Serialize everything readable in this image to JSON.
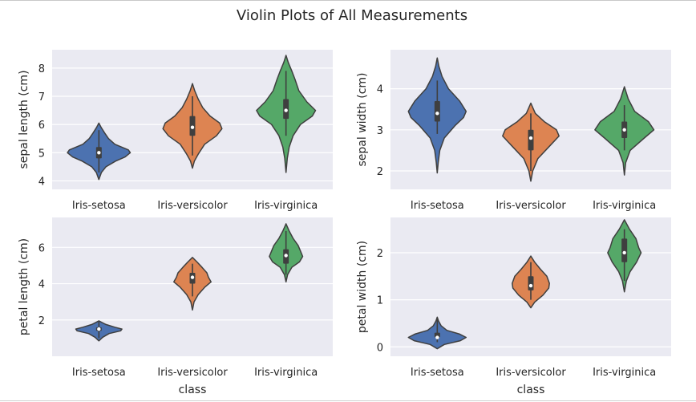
{
  "figure": {
    "title": "Violin Plots of All Measurements"
  },
  "chart_data": [
    {
      "type": "violin",
      "ylabel": "sepal length (cm)",
      "xlabel": "",
      "categories": [
        "Iris-setosa",
        "Iris-versicolor",
        "Iris-virginica"
      ],
      "yticks": [
        4,
        5,
        6,
        7,
        8
      ],
      "ylim": [
        3.7,
        8.65
      ],
      "grid": true,
      "series": [
        {
          "category": "Iris-setosa",
          "color": "#4c72b0",
          "profile": [
            [
              4.05,
              0
            ],
            [
              4.3,
              0.08
            ],
            [
              4.5,
              0.22
            ],
            [
              4.7,
              0.52
            ],
            [
              4.85,
              0.82
            ],
            [
              5.0,
              0.98
            ],
            [
              5.1,
              0.92
            ],
            [
              5.3,
              0.5
            ],
            [
              5.5,
              0.3
            ],
            [
              5.7,
              0.18
            ],
            [
              5.9,
              0.07
            ],
            [
              6.05,
              0
            ]
          ],
          "min": 4.3,
          "q1": 4.8,
          "median": 5.0,
          "q3": 5.2,
          "max": 5.8
        },
        {
          "category": "Iris-versicolor",
          "color": "#dd8452",
          "profile": [
            [
              4.45,
              0
            ],
            [
              4.7,
              0.06
            ],
            [
              4.95,
              0.18
            ],
            [
              5.3,
              0.38
            ],
            [
              5.6,
              0.75
            ],
            [
              5.85,
              0.92
            ],
            [
              6.05,
              0.85
            ],
            [
              6.3,
              0.55
            ],
            [
              6.6,
              0.32
            ],
            [
              6.9,
              0.18
            ],
            [
              7.2,
              0.07
            ],
            [
              7.45,
              0
            ]
          ],
          "min": 4.9,
          "q1": 5.6,
          "median": 5.9,
          "q3": 6.3,
          "max": 7.0
        },
        {
          "category": "Iris-virginica",
          "color": "#55a868",
          "profile": [
            [
              4.3,
              0
            ],
            [
              4.8,
              0.04
            ],
            [
              5.2,
              0.1
            ],
            [
              5.6,
              0.22
            ],
            [
              6.0,
              0.45
            ],
            [
              6.3,
              0.82
            ],
            [
              6.5,
              0.92
            ],
            [
              6.8,
              0.65
            ],
            [
              7.2,
              0.4
            ],
            [
              7.6,
              0.28
            ],
            [
              7.9,
              0.18
            ],
            [
              8.2,
              0.07
            ],
            [
              8.45,
              0
            ]
          ],
          "min": 5.6,
          "q1": 6.2,
          "median": 6.5,
          "q3": 6.9,
          "max": 7.9
        }
      ]
    },
    {
      "type": "violin",
      "ylabel": "sepal width (cm)",
      "xlabel": "",
      "categories": [
        "Iris-setosa",
        "Iris-versicolor",
        "Iris-virginica"
      ],
      "yticks": [
        2,
        3,
        4
      ],
      "ylim": [
        1.55,
        4.95
      ],
      "grid": true,
      "series": [
        {
          "category": "Iris-setosa",
          "color": "#4c72b0",
          "profile": [
            [
              1.95,
              0
            ],
            [
              2.2,
              0.03
            ],
            [
              2.5,
              0.08
            ],
            [
              2.8,
              0.22
            ],
            [
              3.1,
              0.55
            ],
            [
              3.3,
              0.82
            ],
            [
              3.45,
              0.9
            ],
            [
              3.7,
              0.7
            ],
            [
              4.0,
              0.35
            ],
            [
              4.3,
              0.15
            ],
            [
              4.55,
              0.05
            ],
            [
              4.75,
              0
            ]
          ],
          "min": 2.9,
          "q1": 3.2,
          "median": 3.4,
          "q3": 3.7,
          "max": 4.2
        },
        {
          "category": "Iris-versicolor",
          "color": "#dd8452",
          "profile": [
            [
              1.75,
              0
            ],
            [
              2.0,
              0.06
            ],
            [
              2.3,
              0.22
            ],
            [
              2.6,
              0.58
            ],
            [
              2.85,
              0.88
            ],
            [
              3.0,
              0.8
            ],
            [
              3.2,
              0.42
            ],
            [
              3.4,
              0.14
            ],
            [
              3.65,
              0
            ]
          ],
          "min": 2.0,
          "q1": 2.5,
          "median": 2.8,
          "q3": 3.0,
          "max": 3.4
        },
        {
          "category": "Iris-virginica",
          "color": "#55a868",
          "profile": [
            [
              1.9,
              0
            ],
            [
              2.2,
              0.04
            ],
            [
              2.5,
              0.18
            ],
            [
              2.8,
              0.62
            ],
            [
              3.0,
              0.92
            ],
            [
              3.2,
              0.75
            ],
            [
              3.45,
              0.32
            ],
            [
              3.75,
              0.12
            ],
            [
              4.05,
              0
            ]
          ],
          "min": 2.5,
          "q1": 2.8,
          "median": 3.0,
          "q3": 3.2,
          "max": 3.6
        }
      ]
    },
    {
      "type": "violin",
      "ylabel": "petal length (cm)",
      "xlabel": "class",
      "categories": [
        "Iris-setosa",
        "Iris-versicolor",
        "Iris-virginica"
      ],
      "yticks": [
        2,
        4,
        6
      ],
      "ylim": [
        0.0,
        7.65
      ],
      "grid": true,
      "series": [
        {
          "category": "Iris-setosa",
          "color": "#4c72b0",
          "profile": [
            [
              0.85,
              0
            ],
            [
              1.05,
              0.12
            ],
            [
              1.25,
              0.32
            ],
            [
              1.4,
              0.68
            ],
            [
              1.5,
              0.72
            ],
            [
              1.6,
              0.5
            ],
            [
              1.75,
              0.22
            ],
            [
              1.95,
              0
            ]
          ],
          "min": 1.0,
          "q1": 1.4,
          "median": 1.5,
          "q3": 1.6,
          "max": 1.9
        },
        {
          "category": "Iris-versicolor",
          "color": "#dd8452",
          "profile": [
            [
              2.55,
              0
            ],
            [
              3.0,
              0.05
            ],
            [
              3.4,
              0.18
            ],
            [
              3.8,
              0.38
            ],
            [
              4.1,
              0.58
            ],
            [
              4.35,
              0.5
            ],
            [
              4.6,
              0.45
            ],
            [
              4.9,
              0.3
            ],
            [
              5.2,
              0.14
            ],
            [
              5.45,
              0
            ]
          ],
          "min": 3.3,
          "q1": 4.0,
          "median": 4.35,
          "q3": 4.6,
          "max": 5.1
        },
        {
          "category": "Iris-virginica",
          "color": "#55a868",
          "profile": [
            [
              4.1,
              0
            ],
            [
              4.5,
              0.05
            ],
            [
              4.9,
              0.18
            ],
            [
              5.2,
              0.42
            ],
            [
              5.5,
              0.52
            ],
            [
              5.8,
              0.45
            ],
            [
              6.1,
              0.38
            ],
            [
              6.5,
              0.22
            ],
            [
              6.9,
              0.1
            ],
            [
              7.3,
              0
            ]
          ],
          "min": 4.5,
          "q1": 5.1,
          "median": 5.55,
          "q3": 5.9,
          "max": 6.9
        }
      ]
    },
    {
      "type": "violin",
      "ylabel": "petal width (cm)",
      "xlabel": "class",
      "categories": [
        "Iris-setosa",
        "Iris-versicolor",
        "Iris-virginica"
      ],
      "yticks": [
        0,
        1,
        2
      ],
      "ylim": [
        -0.2,
        2.75
      ],
      "grid": true,
      "series": [
        {
          "category": "Iris-setosa",
          "color": "#4c72b0",
          "profile": [
            [
              -0.04,
              0
            ],
            [
              0.05,
              0.22
            ],
            [
              0.13,
              0.72
            ],
            [
              0.2,
              0.9
            ],
            [
              0.27,
              0.7
            ],
            [
              0.35,
              0.3
            ],
            [
              0.45,
              0.12
            ],
            [
              0.55,
              0.04
            ],
            [
              0.63,
              0
            ]
          ],
          "min": 0.1,
          "q1": 0.2,
          "median": 0.2,
          "q3": 0.3,
          "max": 0.6
        },
        {
          "category": "Iris-versicolor",
          "color": "#dd8452",
          "profile": [
            [
              0.83,
              0
            ],
            [
              0.95,
              0.12
            ],
            [
              1.1,
              0.38
            ],
            [
              1.25,
              0.56
            ],
            [
              1.35,
              0.58
            ],
            [
              1.5,
              0.5
            ],
            [
              1.65,
              0.3
            ],
            [
              1.8,
              0.12
            ],
            [
              1.93,
              0
            ]
          ],
          "min": 1.0,
          "q1": 1.2,
          "median": 1.3,
          "q3": 1.5,
          "max": 1.8
        },
        {
          "category": "Iris-virginica",
          "color": "#55a868",
          "profile": [
            [
              1.17,
              0
            ],
            [
              1.4,
              0.06
            ],
            [
              1.6,
              0.18
            ],
            [
              1.8,
              0.38
            ],
            [
              2.0,
              0.52
            ],
            [
              2.1,
              0.45
            ],
            [
              2.3,
              0.36
            ],
            [
              2.5,
              0.16
            ],
            [
              2.7,
              0
            ]
          ],
          "min": 1.4,
          "q1": 1.8,
          "median": 2.0,
          "q3": 2.3,
          "max": 2.5
        }
      ]
    }
  ]
}
